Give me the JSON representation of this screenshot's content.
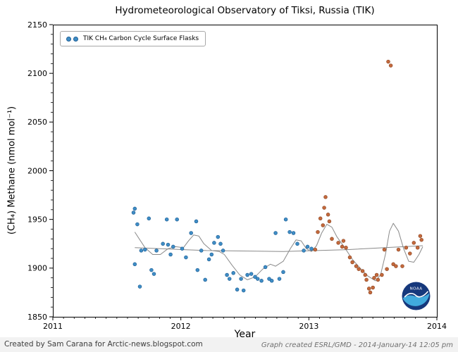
{
  "footer": {
    "left": "Created by Sam Carana for Arctic-news.blogspot.com",
    "right": "Graph created ESRL/GMD - 2014-January-14 12:05 pm"
  },
  "logo": {
    "text": "NOAA"
  },
  "chart_data": {
    "type": "scatter",
    "title": "Hydrometeorological Observatory of Tiksi, Russia (TIK)",
    "xlabel": "Year",
    "ylabel": "(CH₄) Methane (nmol mol⁻¹)",
    "legend_label": "TIK CH₄ Carbon Cycle Surface Flasks",
    "legend_position": "upper left",
    "grid": false,
    "xlim": [
      2011,
      2014
    ],
    "ylim": [
      1850,
      2150
    ],
    "xticks": [
      2011,
      2012,
      2013,
      2014
    ],
    "yticks": [
      1850,
      1900,
      1950,
      2000,
      2050,
      2100,
      2150
    ],
    "curve_color": "#8a8a8a",
    "series": [
      {
        "name": "flasks",
        "color": "#3f8ec6",
        "edge_color": "#1f5f96",
        "points": [
          [
            2011.63,
            1957
          ],
          [
            2011.64,
            1961
          ],
          [
            2011.64,
            1904
          ],
          [
            2011.66,
            1945
          ],
          [
            2011.68,
            1881
          ],
          [
            2011.69,
            1918
          ],
          [
            2011.72,
            1919
          ],
          [
            2011.75,
            1951
          ],
          [
            2011.77,
            1898
          ],
          [
            2011.79,
            1894
          ],
          [
            2011.81,
            1918
          ],
          [
            2011.86,
            1925
          ],
          [
            2011.89,
            1950
          ],
          [
            2011.9,
            1924
          ],
          [
            2011.92,
            1914
          ],
          [
            2011.94,
            1922
          ],
          [
            2011.97,
            1950
          ],
          [
            2012.01,
            1920
          ],
          [
            2012.04,
            1911
          ],
          [
            2012.08,
            1936
          ],
          [
            2012.12,
            1948
          ],
          [
            2012.13,
            1898
          ],
          [
            2012.16,
            1918
          ],
          [
            2012.19,
            1888
          ],
          [
            2012.22,
            1909
          ],
          [
            2012.24,
            1914
          ],
          [
            2012.26,
            1926
          ],
          [
            2012.29,
            1932
          ],
          [
            2012.31,
            1925
          ],
          [
            2012.33,
            1918
          ],
          [
            2012.36,
            1893
          ],
          [
            2012.38,
            1889
          ],
          [
            2012.41,
            1895
          ],
          [
            2012.44,
            1878
          ],
          [
            2012.47,
            1889
          ],
          [
            2012.49,
            1877
          ],
          [
            2012.52,
            1893
          ],
          [
            2012.55,
            1894
          ],
          [
            2012.58,
            1891
          ],
          [
            2012.6,
            1889
          ],
          [
            2012.63,
            1887
          ],
          [
            2012.66,
            1901
          ],
          [
            2012.69,
            1889
          ],
          [
            2012.71,
            1887
          ],
          [
            2012.74,
            1936
          ],
          [
            2012.77,
            1889
          ],
          [
            2012.8,
            1896
          ],
          [
            2012.82,
            1950
          ],
          [
            2012.85,
            1937
          ],
          [
            2012.88,
            1936
          ],
          [
            2012.91,
            1925
          ],
          [
            2012.96,
            1918
          ],
          [
            2012.99,
            1922
          ],
          [
            2013.02,
            1920
          ]
        ]
      },
      {
        "name": "flasks-preliminary",
        "color": "#c4693c",
        "edge_color": "#8f4a28",
        "points": [
          [
            2013.05,
            1919
          ],
          [
            2013.07,
            1937
          ],
          [
            2013.09,
            1951
          ],
          [
            2013.11,
            1944
          ],
          [
            2013.12,
            1962
          ],
          [
            2013.13,
            1973
          ],
          [
            2013.15,
            1955
          ],
          [
            2013.16,
            1948
          ],
          [
            2013.18,
            1930
          ],
          [
            2013.23,
            1926
          ],
          [
            2013.26,
            1922
          ],
          [
            2013.27,
            1928
          ],
          [
            2013.29,
            1921
          ],
          [
            2013.32,
            1911
          ],
          [
            2013.34,
            1906
          ],
          [
            2013.37,
            1902
          ],
          [
            2013.39,
            1899
          ],
          [
            2013.42,
            1897
          ],
          [
            2013.44,
            1893
          ],
          [
            2013.45,
            1888
          ],
          [
            2013.47,
            1879
          ],
          [
            2013.48,
            1875
          ],
          [
            2013.5,
            1880
          ],
          [
            2013.51,
            1890
          ],
          [
            2013.53,
            1893
          ],
          [
            2013.54,
            1888
          ],
          [
            2013.57,
            1893
          ],
          [
            2013.59,
            1919
          ],
          [
            2013.61,
            1899
          ],
          [
            2013.62,
            2112
          ],
          [
            2013.64,
            2108
          ],
          [
            2013.66,
            1904
          ],
          [
            2013.68,
            1902
          ],
          [
            2013.7,
            1919
          ],
          [
            2013.73,
            1902
          ],
          [
            2013.76,
            1921
          ],
          [
            2013.79,
            1915
          ],
          [
            2013.82,
            1926
          ],
          [
            2013.85,
            1921
          ],
          [
            2013.87,
            1933
          ],
          [
            2013.88,
            1929
          ]
        ]
      }
    ],
    "smooth_curve": [
      [
        2011.64,
        1937
      ],
      [
        2011.68,
        1929
      ],
      [
        2011.72,
        1921
      ],
      [
        2011.78,
        1914
      ],
      [
        2011.84,
        1914
      ],
      [
        2011.9,
        1920
      ],
      [
        2011.96,
        1922
      ],
      [
        2012.02,
        1921
      ],
      [
        2012.06,
        1928
      ],
      [
        2012.1,
        1934
      ],
      [
        2012.14,
        1933
      ],
      [
        2012.18,
        1925
      ],
      [
        2012.24,
        1918
      ],
      [
        2012.3,
        1917
      ],
      [
        2012.34,
        1914
      ],
      [
        2012.4,
        1903
      ],
      [
        2012.46,
        1893
      ],
      [
        2012.52,
        1888
      ],
      [
        2012.58,
        1891
      ],
      [
        2012.64,
        1899
      ],
      [
        2012.7,
        1904
      ],
      [
        2012.74,
        1902
      ],
      [
        2012.8,
        1907
      ],
      [
        2012.86,
        1921
      ],
      [
        2012.9,
        1929
      ],
      [
        2012.94,
        1928
      ],
      [
        2012.98,
        1920
      ],
      [
        2013.02,
        1917
      ],
      [
        2013.06,
        1923
      ],
      [
        2013.1,
        1936
      ],
      [
        2013.14,
        1945
      ],
      [
        2013.18,
        1942
      ],
      [
        2013.22,
        1932
      ],
      [
        2013.28,
        1921
      ],
      [
        2013.34,
        1909
      ],
      [
        2013.4,
        1900
      ],
      [
        2013.46,
        1892
      ],
      [
        2013.52,
        1887
      ],
      [
        2013.56,
        1893
      ],
      [
        2013.6,
        1915
      ],
      [
        2013.63,
        1938
      ],
      [
        2013.66,
        1946
      ],
      [
        2013.7,
        1938
      ],
      [
        2013.74,
        1920
      ],
      [
        2013.78,
        1907
      ],
      [
        2013.82,
        1906
      ],
      [
        2013.86,
        1914
      ],
      [
        2013.89,
        1922
      ]
    ],
    "trend_line": [
      [
        2011.64,
        1921
      ],
      [
        2012.2,
        1918
      ],
      [
        2012.8,
        1917
      ],
      [
        2013.3,
        1919
      ],
      [
        2013.89,
        1923
      ]
    ]
  }
}
